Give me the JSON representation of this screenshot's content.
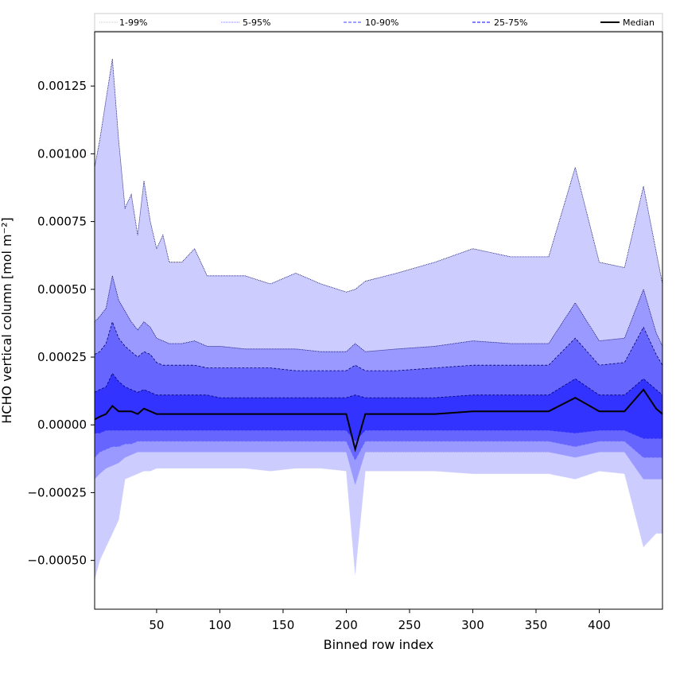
{
  "chart_data": {
    "type": "area",
    "xlabel": "Binned row index",
    "ylabel": "HCHO vertical column [mol m⁻²]",
    "xlim": [
      1,
      450
    ],
    "ylim": [
      -0.00068,
      0.00145
    ],
    "x_ticks": [
      50,
      100,
      150,
      200,
      250,
      300,
      350,
      400
    ],
    "x_tick_labels": [
      "50",
      "100",
      "150",
      "200",
      "250",
      "300",
      "350",
      "400"
    ],
    "y_ticks": [
      -0.0005,
      -0.00025,
      0.0,
      0.00025,
      0.0005,
      0.00075,
      0.001,
      0.00125
    ],
    "y_tick_labels": [
      "−0.00050",
      "−0.00025",
      "0.00000",
      "0.00025",
      "0.00050",
      "0.00075",
      "0.00100",
      "0.00125"
    ],
    "grid": false,
    "legend_position": "top, spanning full width",
    "legend": [
      {
        "label": "1-99%",
        "color": "#ccccff",
        "style": "dotted"
      },
      {
        "label": "5-95%",
        "color": "#9999ff",
        "style": "dotted"
      },
      {
        "label": "10-90%",
        "color": "#6666ff",
        "style": "dashed"
      },
      {
        "label": "25-75%",
        "color": "#3333ff",
        "style": "dashed"
      },
      {
        "label": "Median",
        "color": "#000000",
        "style": "solid"
      }
    ],
    "x": [
      1,
      5,
      10,
      15,
      20,
      25,
      30,
      35,
      40,
      45,
      50,
      55,
      60,
      70,
      80,
      90,
      100,
      120,
      140,
      160,
      180,
      200,
      207,
      215,
      240,
      270,
      300,
      330,
      360,
      381,
      400,
      420,
      435,
      445,
      450
    ],
    "series": [
      {
        "name": "1-99%",
        "lower": [
          -0.00057,
          -0.0005,
          -0.00045,
          -0.0004,
          -0.00035,
          -0.0002,
          -0.00019,
          -0.00018,
          -0.00017,
          -0.00017,
          -0.00016,
          -0.00016,
          -0.00016,
          -0.00016,
          -0.00016,
          -0.00016,
          -0.00016,
          -0.00016,
          -0.00017,
          -0.00016,
          -0.00016,
          -0.00017,
          -0.00055,
          -0.00017,
          -0.00017,
          -0.00017,
          -0.00018,
          -0.00018,
          -0.00018,
          -0.0002,
          -0.00017,
          -0.00018,
          -0.00045,
          -0.0004,
          -0.0004
        ],
        "upper": [
          0.00095,
          0.00105,
          0.0012,
          0.00135,
          0.00105,
          0.0008,
          0.00085,
          0.0007,
          0.0009,
          0.00075,
          0.00065,
          0.0007,
          0.0006,
          0.0006,
          0.00065,
          0.00055,
          0.00055,
          0.00055,
          0.00052,
          0.00056,
          0.00052,
          0.00049,
          0.0005,
          0.00053,
          0.00056,
          0.0006,
          0.00065,
          0.00062,
          0.00062,
          0.00095,
          0.0006,
          0.00058,
          0.00088,
          0.00064,
          0.00052
        ]
      },
      {
        "name": "5-95%",
        "lower": [
          -0.0002,
          -0.00018,
          -0.00016,
          -0.00015,
          -0.00014,
          -0.00012,
          -0.00011,
          -0.0001,
          -0.0001,
          -0.0001,
          -0.0001,
          -0.0001,
          -0.0001,
          -0.0001,
          -0.0001,
          -0.0001,
          -0.0001,
          -0.0001,
          -0.0001,
          -0.0001,
          -0.0001,
          -0.0001,
          -0.00022,
          -0.0001,
          -0.0001,
          -0.0001,
          -0.0001,
          -0.0001,
          -0.0001,
          -0.00012,
          -0.0001,
          -0.0001,
          -0.0002,
          -0.0002,
          -0.0002
        ],
        "upper": [
          0.00038,
          0.0004,
          0.00043,
          0.00055,
          0.00046,
          0.00042,
          0.00038,
          0.00035,
          0.00038,
          0.00036,
          0.00032,
          0.00031,
          0.0003,
          0.0003,
          0.00031,
          0.00029,
          0.00029,
          0.00028,
          0.00028,
          0.00028,
          0.00027,
          0.00027,
          0.0003,
          0.00027,
          0.00028,
          0.00029,
          0.00031,
          0.0003,
          0.0003,
          0.00045,
          0.00031,
          0.00032,
          0.0005,
          0.00034,
          0.00029
        ]
      },
      {
        "name": "10-90%",
        "lower": [
          -0.00012,
          -0.0001,
          -9e-05,
          -8e-05,
          -8e-05,
          -7e-05,
          -7e-05,
          -6e-05,
          -6e-05,
          -6e-05,
          -6e-05,
          -6e-05,
          -6e-05,
          -6e-05,
          -6e-05,
          -6e-05,
          -6e-05,
          -6e-05,
          -6e-05,
          -6e-05,
          -6e-05,
          -6e-05,
          -0.00013,
          -6e-05,
          -6e-05,
          -6e-05,
          -6e-05,
          -6e-05,
          -6e-05,
          -8e-05,
          -6e-05,
          -6e-05,
          -0.00012,
          -0.00012,
          -0.00012
        ],
        "upper": [
          0.00026,
          0.00027,
          0.0003,
          0.00038,
          0.00032,
          0.00029,
          0.00027,
          0.00025,
          0.00027,
          0.00026,
          0.00023,
          0.00022,
          0.00022,
          0.00022,
          0.00022,
          0.00021,
          0.00021,
          0.00021,
          0.00021,
          0.0002,
          0.0002,
          0.0002,
          0.00022,
          0.0002,
          0.0002,
          0.00021,
          0.00022,
          0.00022,
          0.00022,
          0.00032,
          0.00022,
          0.00023,
          0.00036,
          0.00026,
          0.00022
        ]
      },
      {
        "name": "25-75%",
        "lower": [
          -3e-05,
          -3e-05,
          -2e-05,
          -2e-05,
          -2e-05,
          -2e-05,
          -2e-05,
          -2e-05,
          -2e-05,
          -2e-05,
          -2e-05,
          -2e-05,
          -2e-05,
          -2e-05,
          -2e-05,
          -2e-05,
          -2e-05,
          -2e-05,
          -2e-05,
          -2e-05,
          -2e-05,
          -2e-05,
          -6e-05,
          -2e-05,
          -2e-05,
          -2e-05,
          -2e-05,
          -2e-05,
          -2e-05,
          -3e-05,
          -2e-05,
          -2e-05,
          -5e-05,
          -5e-05,
          -5e-05
        ],
        "upper": [
          0.00012,
          0.00013,
          0.00014,
          0.00019,
          0.00016,
          0.00014,
          0.00013,
          0.00012,
          0.00013,
          0.00012,
          0.00011,
          0.00011,
          0.00011,
          0.00011,
          0.00011,
          0.00011,
          0.0001,
          0.0001,
          0.0001,
          0.0001,
          0.0001,
          0.0001,
          0.00011,
          0.0001,
          0.0001,
          0.0001,
          0.00011,
          0.00011,
          0.00011,
          0.00017,
          0.00011,
          0.00011,
          0.00017,
          0.00013,
          0.00011
        ]
      },
      {
        "name": "Median",
        "values": [
          2e-05,
          3e-05,
          4e-05,
          7e-05,
          5e-05,
          5e-05,
          5e-05,
          4e-05,
          6e-05,
          5e-05,
          4e-05,
          4e-05,
          4e-05,
          4e-05,
          4e-05,
          4e-05,
          4e-05,
          4e-05,
          4e-05,
          4e-05,
          4e-05,
          4e-05,
          -9e-05,
          4e-05,
          4e-05,
          4e-05,
          5e-05,
          5e-05,
          5e-05,
          0.0001,
          5e-05,
          5e-05,
          0.00013,
          6e-05,
          4e-05
        ]
      }
    ],
    "colors": {
      "band_1_99": "#ccccff",
      "band_5_95": "#9999ff",
      "band_10_90": "#6666ff",
      "band_25_75": "#3333ff",
      "median": "#000000",
      "edge_dark": "#000066"
    }
  }
}
